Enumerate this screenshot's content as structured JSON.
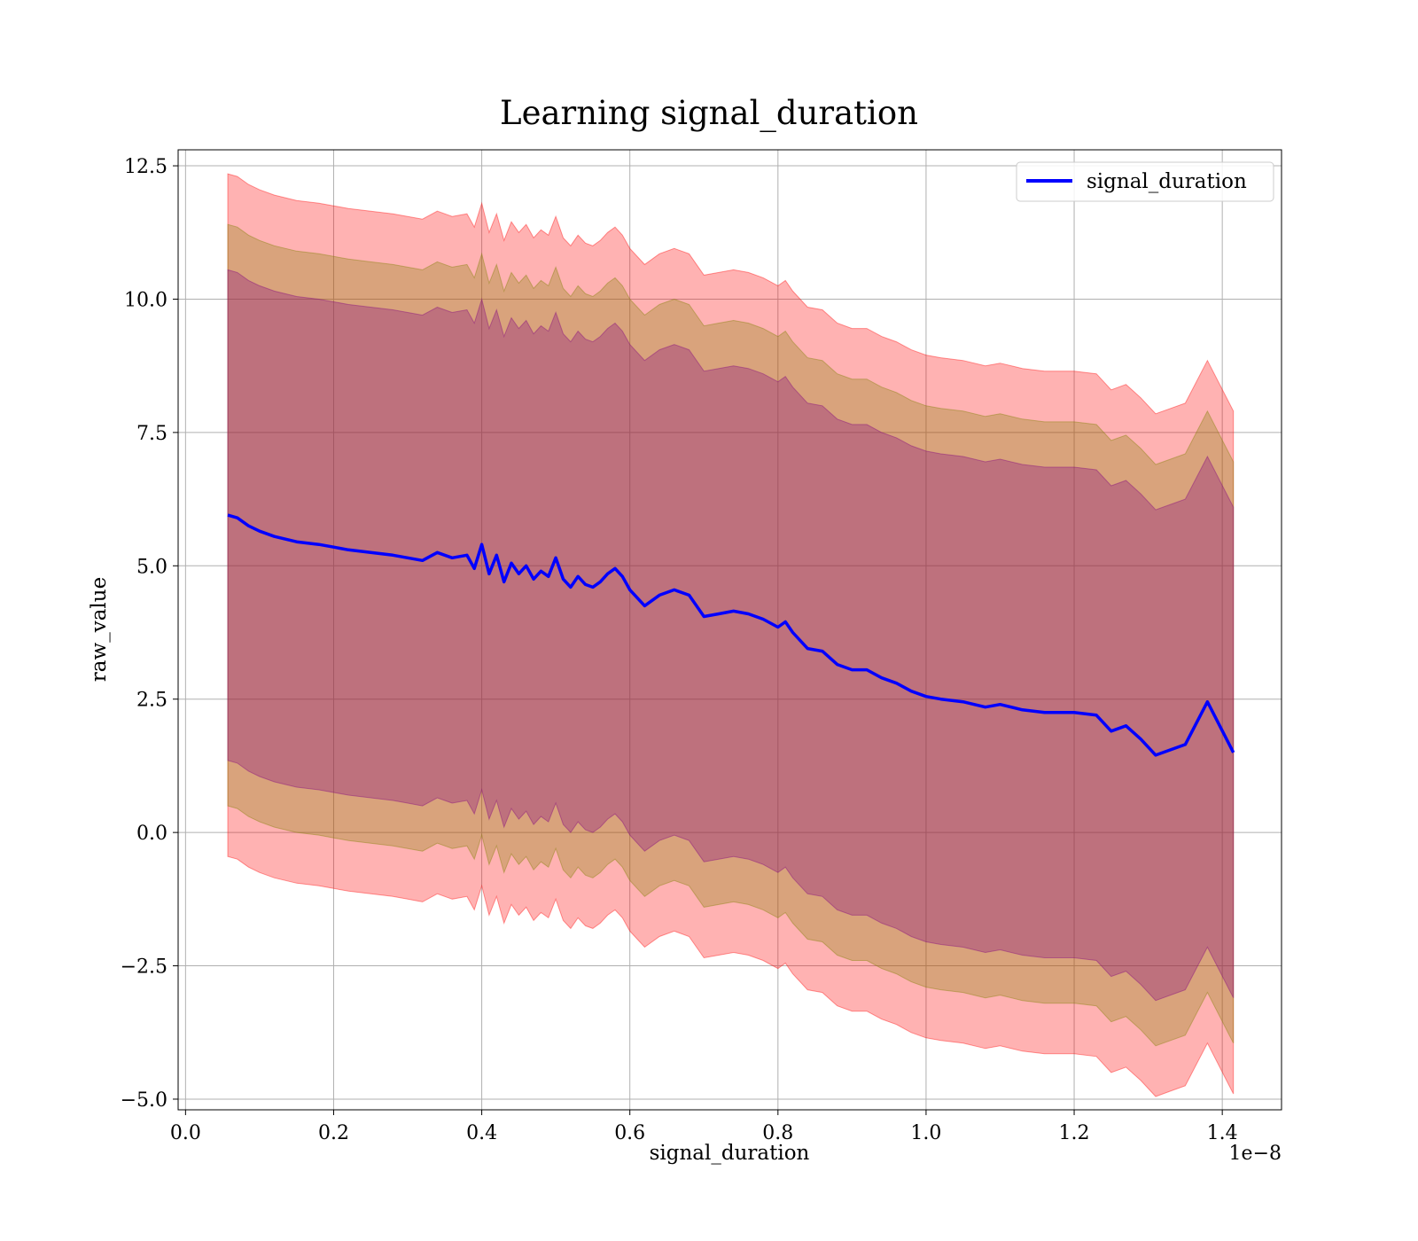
{
  "chart_data": {
    "type": "area",
    "title": "Learning signal_duration",
    "xlabel": "signal_duration",
    "ylabel": "raw_value",
    "x_offset_label": "1e−8",
    "xlim": [
      -0.01,
      1.48
    ],
    "ylim": [
      -5.2,
      12.8
    ],
    "x_ticks": [
      0.0,
      0.2,
      0.4,
      0.6,
      0.8,
      1.0,
      1.2,
      1.4
    ],
    "x_tick_labels": [
      "0.0",
      "0.2",
      "0.4",
      "0.6",
      "0.8",
      "1.0",
      "1.2",
      "1.4"
    ],
    "y_ticks": [
      -5.0,
      -2.5,
      0.0,
      2.5,
      5.0,
      7.5,
      10.0,
      12.5
    ],
    "y_tick_labels": [
      "−5.0",
      "−2.5",
      "0.0",
      "2.5",
      "5.0",
      "7.5",
      "10.0",
      "12.5"
    ],
    "grid": true,
    "legend_position": "top-right",
    "series": [
      {
        "name": "signal_duration",
        "color": "#0000ff",
        "x": [
          0.057,
          0.07,
          0.085,
          0.1,
          0.12,
          0.15,
          0.18,
          0.2,
          0.22,
          0.25,
          0.28,
          0.3,
          0.32,
          0.34,
          0.36,
          0.38,
          0.39,
          0.4,
          0.41,
          0.42,
          0.43,
          0.44,
          0.45,
          0.46,
          0.47,
          0.48,
          0.49,
          0.5,
          0.51,
          0.52,
          0.53,
          0.54,
          0.55,
          0.56,
          0.57,
          0.58,
          0.59,
          0.6,
          0.62,
          0.64,
          0.66,
          0.68,
          0.7,
          0.72,
          0.74,
          0.76,
          0.78,
          0.8,
          0.81,
          0.82,
          0.84,
          0.86,
          0.88,
          0.9,
          0.92,
          0.94,
          0.96,
          0.98,
          1.0,
          1.02,
          1.05,
          1.08,
          1.1,
          1.13,
          1.16,
          1.2,
          1.23,
          1.25,
          1.27,
          1.29,
          1.31,
          1.33,
          1.35,
          1.38,
          1.415
        ],
        "y": [
          5.95,
          5.9,
          5.75,
          5.65,
          5.55,
          5.45,
          5.4,
          5.35,
          5.3,
          5.25,
          5.2,
          5.15,
          5.1,
          5.25,
          5.15,
          5.2,
          4.95,
          5.4,
          4.85,
          5.2,
          4.7,
          5.05,
          4.85,
          5.0,
          4.75,
          4.9,
          4.8,
          5.15,
          4.75,
          4.6,
          4.8,
          4.65,
          4.6,
          4.7,
          4.85,
          4.95,
          4.8,
          4.55,
          4.25,
          4.45,
          4.55,
          4.45,
          4.05,
          4.1,
          4.15,
          4.1,
          4.0,
          3.85,
          3.95,
          3.75,
          3.45,
          3.4,
          3.15,
          3.05,
          3.05,
          2.9,
          2.8,
          2.65,
          2.55,
          2.5,
          2.45,
          2.35,
          2.4,
          2.3,
          2.25,
          2.25,
          2.2,
          1.9,
          2.0,
          1.75,
          1.45,
          1.55,
          1.65,
          2.45,
          1.5
        ]
      }
    ],
    "bands": [
      {
        "color": "#ff0000",
        "opacity": 0.3,
        "offset": 6.4
      },
      {
        "color": "#808000",
        "opacity": 0.3,
        "offset": 5.45
      },
      {
        "color": "#800080",
        "opacity": 0.3,
        "offset": 4.6
      }
    ]
  }
}
